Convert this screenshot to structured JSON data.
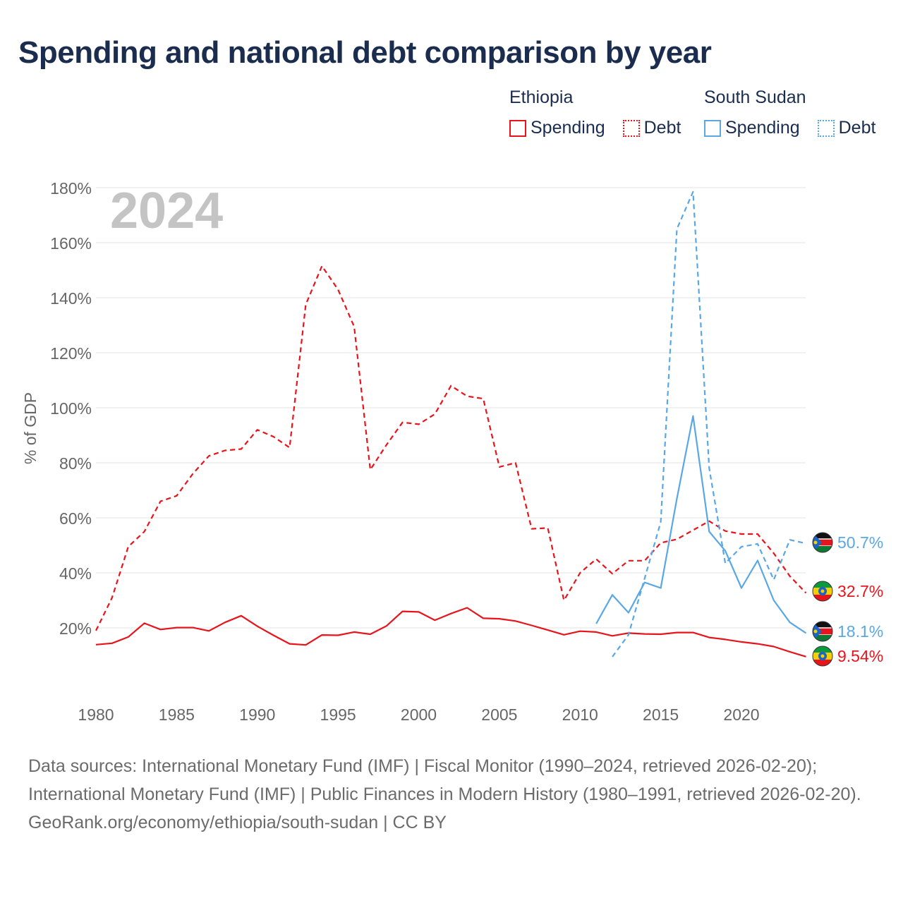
{
  "chart_data": {
    "type": "line",
    "title": "Spending and national debt comparison by year",
    "year_watermark": "2024",
    "ylabel": "% of GDP",
    "ylim": [
      0,
      180
    ],
    "xlim": [
      1980,
      2024
    ],
    "y_ticks": [
      20,
      40,
      60,
      80,
      100,
      120,
      140,
      160,
      180
    ],
    "y_tick_labels": [
      "20%",
      "40%",
      "60%",
      "80%",
      "100%",
      "120%",
      "140%",
      "160%",
      "180%"
    ],
    "x_ticks": [
      1980,
      1985,
      1990,
      1995,
      2000,
      2005,
      2010,
      2015,
      2020
    ],
    "x_tick_labels": [
      "1980",
      "1985",
      "1990",
      "1995",
      "2000",
      "2005",
      "2010",
      "2015",
      "2020"
    ],
    "grid": true,
    "legend": {
      "groups": [
        {
          "country": "Ethiopia",
          "items": [
            "Spending",
            "Debt"
          ]
        },
        {
          "country": "South Sudan",
          "items": [
            "Spending",
            "Debt"
          ]
        }
      ]
    },
    "series": [
      {
        "name": "Ethiopia Debt",
        "country": "Ethiopia",
        "metric": "Debt",
        "color": "#e8141c",
        "dash": true,
        "x": [
          1980,
          1981,
          1982,
          1983,
          1984,
          1985,
          1986,
          1987,
          1988,
          1989,
          1990,
          1991,
          1992,
          1993,
          1994,
          1995,
          1996,
          1997,
          1998,
          1999,
          2000,
          2001,
          2002,
          2003,
          2004,
          2005,
          2006,
          2007,
          2008,
          2009,
          2010,
          2011,
          2012,
          2013,
          2014,
          2015,
          2016,
          2017,
          2018,
          2019,
          2020,
          2021,
          2022,
          2023,
          2024
        ],
        "values": [
          19.0,
          31.0,
          49.5,
          55.0,
          66.0,
          68.0,
          76.0,
          82.5,
          84.5,
          85.0,
          92.0,
          89.5,
          85.5,
          137.5,
          151.5,
          143.0,
          129.5,
          77.5,
          86.5,
          94.7,
          94.0,
          97.7,
          108.0,
          104.2,
          103.3,
          78.5,
          80.0,
          56.0,
          56.3,
          30.0,
          40.0,
          45.0,
          39.7,
          44.4,
          44.4,
          50.9,
          52.2,
          55.5,
          58.8,
          55.2,
          54.1,
          54.1,
          47.1,
          38.8,
          32.7
        ],
        "end_label": "32.7%"
      },
      {
        "name": "Ethiopia Spending",
        "country": "Ethiopia",
        "metric": "Spending",
        "color": "#e8141c",
        "dash": false,
        "x": [
          1980,
          1981,
          1982,
          1983,
          1984,
          1985,
          1986,
          1987,
          1988,
          1989,
          1990,
          1991,
          1992,
          1993,
          1994,
          1995,
          1996,
          1997,
          1998,
          1999,
          2000,
          2001,
          2002,
          2003,
          2004,
          2005,
          2006,
          2007,
          2008,
          2009,
          2010,
          2011,
          2012,
          2013,
          2014,
          2015,
          2016,
          2017,
          2018,
          2019,
          2020,
          2021,
          2022,
          2023,
          2024
        ],
        "values": [
          13.9,
          14.4,
          16.7,
          21.7,
          19.4,
          20.1,
          20.1,
          18.9,
          22.0,
          24.4,
          20.6,
          17.3,
          14.2,
          13.8,
          17.4,
          17.3,
          18.5,
          17.7,
          20.7,
          26.0,
          25.8,
          22.8,
          25.2,
          27.3,
          23.5,
          23.3,
          22.5,
          20.9,
          19.2,
          17.5,
          18.8,
          18.5,
          17.1,
          18.1,
          17.8,
          17.7,
          18.3,
          18.3,
          16.5,
          15.8,
          14.9,
          14.2,
          13.2,
          11.3,
          9.54
        ],
        "end_label": "9.54%"
      },
      {
        "name": "South Sudan Debt",
        "country": "South Sudan",
        "metric": "Debt",
        "color": "#5aa7e6",
        "dash": true,
        "x": [
          2012,
          2013,
          2014,
          2015,
          2016,
          2017,
          2018,
          2019,
          2020,
          2021,
          2022,
          2023,
          2024
        ],
        "values": [
          9.5,
          17.5,
          38.0,
          58.5,
          165.0,
          178.5,
          78.0,
          43.5,
          49.5,
          50.5,
          37.5,
          52.0,
          50.7
        ],
        "end_label": "50.7%"
      },
      {
        "name": "South Sudan Spending",
        "country": "South Sudan",
        "metric": "Spending",
        "color": "#5aa7e6",
        "dash": false,
        "x": [
          2011,
          2012,
          2013,
          2014,
          2015,
          2016,
          2017,
          2018,
          2019,
          2020,
          2021,
          2022,
          2023,
          2024
        ],
        "values": [
          21.5,
          32.0,
          25.5,
          36.5,
          34.5,
          67.0,
          97.0,
          55.0,
          48.0,
          34.5,
          44.5,
          30.0,
          22.0,
          18.1
        ],
        "end_label": "18.1%"
      }
    ]
  },
  "footer": {
    "sources": "Data sources: International Monetary Fund (IMF) | Fiscal Monitor (1990–2024, retrieved 2026-02-20); International Monetary Fund (IMF) | Public Finances in Modern History (1980–1991, retrieved 2026-02-20).",
    "credit": "GeoRank.org/economy/ethiopia/south-sudan | CC BY"
  }
}
